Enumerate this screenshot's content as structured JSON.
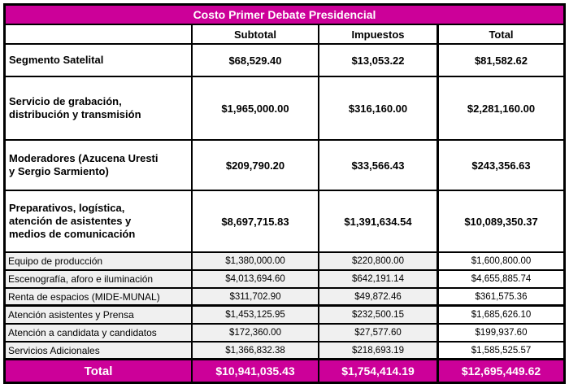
{
  "title": "Costo Primer Debate Presidencial",
  "columns": {
    "label": "",
    "subtotal": "Subtotal",
    "impuestos": "Impuestos",
    "total": "Total"
  },
  "colors": {
    "accent": "#CC0099",
    "subrow_bg": "#F0F0F0",
    "border": "#000000"
  },
  "major_rows": [
    {
      "label": "Segmento Satelital",
      "subtotal": "$68,529.40",
      "impuestos": "$13,053.22",
      "total": "$81,582.62"
    },
    {
      "label": "Servicio de grabación,\ndistribución y transmisión",
      "subtotal": "$1,965,000.00",
      "impuestos": "$316,160.00",
      "total": "$2,281,160.00"
    },
    {
      "label": "Moderadores (Azucena Uresti\ny Sergio Sarmiento)",
      "subtotal": "$209,790.20",
      "impuestos": "$33,566.43",
      "total": "$243,356.63"
    },
    {
      "label": "Preparativos, logística,\natención de asistentes y\nmedios de comunicación",
      "subtotal": "$8,697,715.83",
      "impuestos": "$1,391,634.54",
      "total": "$10,089,350.37"
    }
  ],
  "sub_rows": [
    {
      "label": "Equipo de producción",
      "subtotal": "$1,380,000.00",
      "impuestos": "$220,800.00",
      "total": "$1,600,800.00"
    },
    {
      "label": "Escenografía, aforo e iluminación",
      "subtotal": "$4,013,694.60",
      "impuestos": "$642,191.14",
      "total": "$4,655,885.74"
    },
    {
      "label": "Renta de espacios (MIDE-MUNAL)",
      "subtotal": "$311,702.90",
      "impuestos": "$49,872.46",
      "total": "$361,575.36"
    },
    {
      "label": "Atención asistentes y Prensa",
      "subtotal": "$1,453,125.95",
      "impuestos": "$232,500.15",
      "total": "$1,685,626.10"
    },
    {
      "label": "Atención a candidata y candidatos",
      "subtotal": "$172,360.00",
      "impuestos": "$27,577.60",
      "total": "$199,937.60"
    },
    {
      "label": "Servicios Adicionales",
      "subtotal": "$1,366,832.38",
      "impuestos": "$218,693.19",
      "total": "$1,585,525.57"
    }
  ],
  "total_row": {
    "label": "Total",
    "subtotal": "$10,941,035.43",
    "impuestos": "$1,754,414.19",
    "total": "$12,695,449.62"
  }
}
